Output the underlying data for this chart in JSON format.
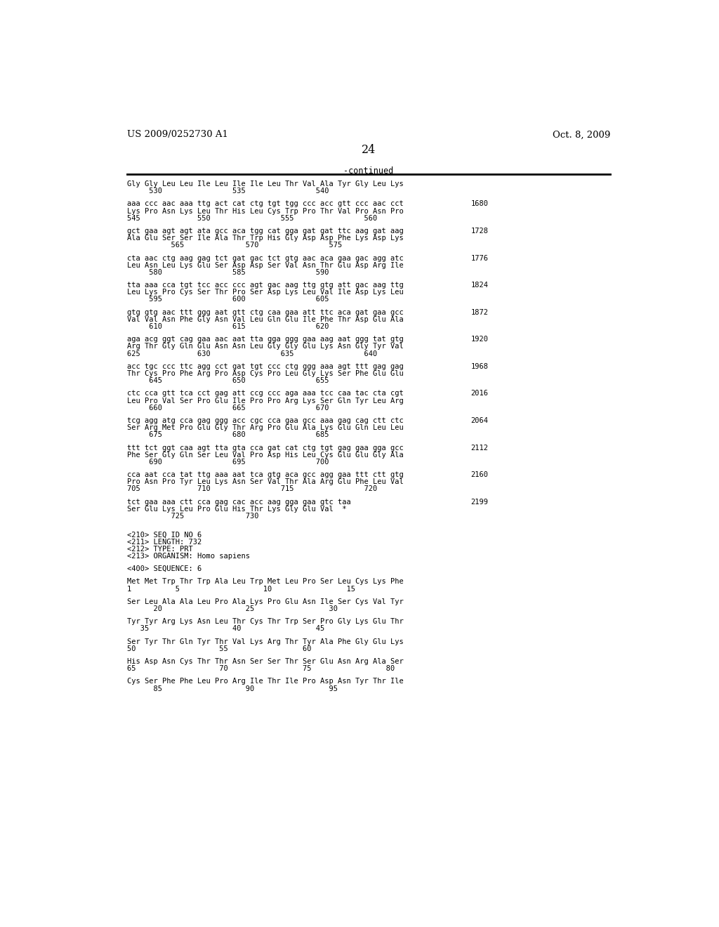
{
  "header_left": "US 2009/0252730 A1",
  "header_right": "Oct. 8, 2009",
  "page_number": "24",
  "continued_label": "-continued",
  "bg_color": "#ffffff",
  "text_color": "#000000",
  "content": [
    {
      "type": "aa_header",
      "text": "Gly Gly Leu Leu Ile Leu Ile Ile Leu Thr Val Ala Tyr Gly Leu Lys"
    },
    {
      "type": "aa_numbers",
      "text": "     530                535                540"
    },
    {
      "type": "blank"
    },
    {
      "type": "dna",
      "text": "aaa ccc aac aaa ttg act cat ctg tgt tgg ccc acc gtt ccc aac cct",
      "num": "1680"
    },
    {
      "type": "aa",
      "text": "Lys Pro Asn Lys Leu Thr His Leu Cys Trp Pro Thr Val Pro Asn Pro"
    },
    {
      "type": "aa_numbers",
      "text": "545             550                555                560"
    },
    {
      "type": "blank"
    },
    {
      "type": "dna",
      "text": "gct gaa agt agt ata gcc aca tgg cat gga gat gat ttc aag gat aag",
      "num": "1728"
    },
    {
      "type": "aa",
      "text": "Ala Glu Ser Ser Ile Ala Thr Trp His Gly Asp Asp Phe Lys Asp Lys"
    },
    {
      "type": "aa_numbers",
      "text": "          565              570                575"
    },
    {
      "type": "blank"
    },
    {
      "type": "dna",
      "text": "cta aac ctg aag gag tct gat gac tct gtg aac aca gaa gac agg atc",
      "num": "1776"
    },
    {
      "type": "aa",
      "text": "Leu Asn Leu Lys Glu Ser Asp Asp Ser Val Asn Thr Glu Asp Arg Ile"
    },
    {
      "type": "aa_numbers",
      "text": "     580                585                590"
    },
    {
      "type": "blank"
    },
    {
      "type": "dna",
      "text": "tta aaa cca tgt tcc acc ccc agt gac aag ttg gtg att gac aag ttg",
      "num": "1824"
    },
    {
      "type": "aa",
      "text": "Leu Lys Pro Cys Ser Thr Pro Ser Asp Lys Leu Val Ile Asp Lys Leu"
    },
    {
      "type": "aa_numbers",
      "text": "     595                600                605"
    },
    {
      "type": "blank"
    },
    {
      "type": "dna",
      "text": "gtg gtg aac ttt ggg aat gtt ctg caa gaa att ttc aca gat gaa gcc",
      "num": "1872"
    },
    {
      "type": "aa",
      "text": "Val Val Asn Phe Gly Asn Val Leu Gln Glu Ile Phe Thr Asp Glu Ala"
    },
    {
      "type": "aa_numbers",
      "text": "     610                615                620"
    },
    {
      "type": "blank"
    },
    {
      "type": "dna",
      "text": "aga acg ggt cag gaa aac aat tta gga ggg gaa aag aat ggg tat gtg",
      "num": "1920"
    },
    {
      "type": "aa",
      "text": "Arg Thr Gly Gln Glu Asn Asn Leu Gly Gly Glu Lys Asn Gly Tyr Val"
    },
    {
      "type": "aa_numbers",
      "text": "625             630                635                640"
    },
    {
      "type": "blank"
    },
    {
      "type": "dna",
      "text": "acc tgc ccc ttc agg cct gat tgt ccc ctg ggg aaa agt ttt gag gag",
      "num": "1968"
    },
    {
      "type": "aa",
      "text": "Thr Cys Pro Phe Arg Pro Asp Cys Pro Leu Gly Lys Ser Phe Glu Glu"
    },
    {
      "type": "aa_numbers",
      "text": "     645                650                655"
    },
    {
      "type": "blank"
    },
    {
      "type": "dna",
      "text": "ctc cca gtt tca cct gag att ccg ccc aga aaa tcc caa tac cta cgt",
      "num": "2016"
    },
    {
      "type": "aa",
      "text": "Leu Pro Val Ser Pro Glu Ile Pro Pro Arg Lys Ser Gln Tyr Leu Arg"
    },
    {
      "type": "aa_numbers",
      "text": "     660                665                670"
    },
    {
      "type": "blank"
    },
    {
      "type": "dna",
      "text": "tcg agg atg cca gag ggg acc cgc cca gaa gcc aaa gag cag ctt ctc",
      "num": "2064"
    },
    {
      "type": "aa",
      "text": "Ser Arg Met Pro Glu Gly Thr Arg Pro Glu Ala Lys Glu Gln Leu Leu"
    },
    {
      "type": "aa_numbers",
      "text": "     675                680                685"
    },
    {
      "type": "blank"
    },
    {
      "type": "dna",
      "text": "ttt tct ggt caa agt tta gta cca gat cat ctg tgt gag gaa gga gcc",
      "num": "2112"
    },
    {
      "type": "aa",
      "text": "Phe Ser Gly Gln Ser Leu Val Pro Asp His Leu Cys Glu Glu Gly Ala"
    },
    {
      "type": "aa_numbers",
      "text": "     690                695                700"
    },
    {
      "type": "blank"
    },
    {
      "type": "dna",
      "text": "cca aat cca tat ttg aaa aat tca gtg aca gcc agg gaa ttt ctt gtg",
      "num": "2160"
    },
    {
      "type": "aa",
      "text": "Pro Asn Pro Tyr Leu Lys Asn Ser Val Thr Ala Arg Glu Phe Leu Val"
    },
    {
      "type": "aa_numbers",
      "text": "705             710                715                720"
    },
    {
      "type": "blank"
    },
    {
      "type": "dna",
      "text": "tct gaa aaa ctt cca gag cac acc aag gga gaa gtc taa",
      "num": "2199"
    },
    {
      "type": "aa",
      "text": "Ser Glu Lys Leu Pro Glu His Thr Lys Gly Glu Val  *"
    },
    {
      "type": "aa_numbers",
      "text": "          725              730"
    },
    {
      "type": "blank"
    },
    {
      "type": "blank"
    },
    {
      "type": "meta",
      "text": "<210> SEQ ID NO 6"
    },
    {
      "type": "meta",
      "text": "<211> LENGTH: 732"
    },
    {
      "type": "meta",
      "text": "<212> TYPE: PRT"
    },
    {
      "type": "meta",
      "text": "<213> ORGANISM: Homo sapiens"
    },
    {
      "type": "blank"
    },
    {
      "type": "meta",
      "text": "<400> SEQUENCE: 6"
    },
    {
      "type": "blank"
    },
    {
      "type": "aa",
      "text": "Met Met Trp Thr Trp Ala Leu Trp Met Leu Pro Ser Leu Cys Lys Phe"
    },
    {
      "type": "aa_numbers",
      "text": "1          5                   10                 15"
    },
    {
      "type": "blank"
    },
    {
      "type": "aa",
      "text": "Ser Leu Ala Ala Leu Pro Ala Lys Pro Glu Asn Ile Ser Cys Val Tyr"
    },
    {
      "type": "aa_numbers",
      "text": "      20                   25                 30"
    },
    {
      "type": "blank"
    },
    {
      "type": "aa",
      "text": "Tyr Tyr Arg Lys Asn Leu Thr Cys Thr Trp Ser Pro Gly Lys Glu Thr"
    },
    {
      "type": "aa_numbers",
      "text": "   35                   40                 45"
    },
    {
      "type": "blank"
    },
    {
      "type": "aa",
      "text": "Ser Tyr Thr Gln Tyr Thr Val Lys Arg Thr Tyr Ala Phe Gly Glu Lys"
    },
    {
      "type": "aa_numbers",
      "text": "50                   55                 60"
    },
    {
      "type": "blank"
    },
    {
      "type": "aa",
      "text": "His Asp Asn Cys Thr Thr Asn Ser Ser Thr Ser Glu Asn Arg Ala Ser"
    },
    {
      "type": "aa_numbers",
      "text": "65                   70                 75                 80"
    },
    {
      "type": "blank"
    },
    {
      "type": "aa",
      "text": "Cys Ser Phe Phe Leu Pro Arg Ile Thr Ile Pro Asp Asn Tyr Thr Ile"
    },
    {
      "type": "aa_numbers",
      "text": "      85                   90                 95"
    }
  ]
}
